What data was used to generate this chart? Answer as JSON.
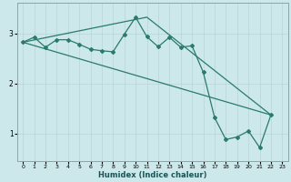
{
  "xlabel": "Humidex (Indice chaleur)",
  "bg_color": "#cce8ea",
  "line_color": "#2a7a6e",
  "grid_color": "#b8d4d6",
  "spine_color": "#7aadad",
  "xlim": [
    -0.5,
    23.5
  ],
  "ylim": [
    0.45,
    3.6
  ],
  "yticks": [
    1,
    2,
    3
  ],
  "xticks": [
    0,
    1,
    2,
    3,
    4,
    5,
    6,
    7,
    8,
    9,
    10,
    11,
    12,
    13,
    14,
    15,
    16,
    17,
    18,
    19,
    20,
    21,
    22,
    23
  ],
  "line1_x": [
    0,
    1,
    2,
    3,
    4,
    5,
    6,
    7,
    8,
    9,
    10,
    11,
    12,
    13,
    14,
    15,
    16,
    17,
    18,
    19,
    20,
    21,
    22
  ],
  "line1_y": [
    2.82,
    2.92,
    2.72,
    2.87,
    2.87,
    2.78,
    2.68,
    2.65,
    2.63,
    2.98,
    3.32,
    2.93,
    2.73,
    2.92,
    2.72,
    2.75,
    2.22,
    1.32,
    0.88,
    0.93,
    1.05,
    0.72,
    1.37
  ],
  "line2_x": [
    0,
    22
  ],
  "line2_y": [
    2.82,
    1.37
  ],
  "line3_x": [
    0,
    11,
    22
  ],
  "line3_y": [
    2.82,
    3.32,
    1.37
  ]
}
